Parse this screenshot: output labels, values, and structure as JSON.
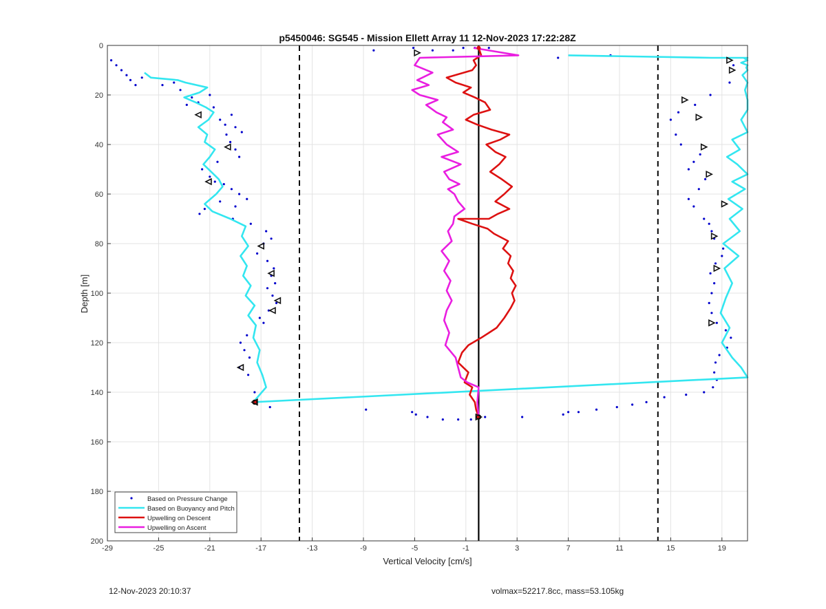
{
  "chart_data": {
    "type": "line",
    "title": "p5450046: SG545 - Mission Ellett Array 11 12-Nov-2023 17:22:28Z",
    "xlabel": "Vertical Velocity [cm/s]",
    "ylabel": "Depth [m]",
    "xlim": [
      -29,
      21
    ],
    "ylim": [
      0,
      200
    ],
    "y_reversed": true,
    "grid": true,
    "xticks": [
      "-29",
      "-25",
      "-21",
      "-17",
      "-13",
      "-9",
      "-5",
      "-1",
      "3",
      "7",
      "11",
      "15",
      "19"
    ],
    "yticks": [
      "0",
      "20",
      "40",
      "60",
      "80",
      "100",
      "120",
      "140",
      "160",
      "180",
      "200"
    ],
    "legend_location": "bottom-left",
    "reference_lines": {
      "solid_x": 0,
      "dashed_x": [
        -14,
        14
      ]
    },
    "series": [
      {
        "name": "Based on Pressure Change",
        "color": "#0000cc",
        "style": "dots",
        "x": [
          -28.7,
          -28.3,
          -27.5,
          -27.9,
          -27.2,
          -26.8,
          -26.3,
          -24.7,
          -23.8,
          -23.3,
          -22.4,
          -22.8,
          -21.9,
          -21.0,
          -20.7,
          -20.2,
          -19.8,
          -19.3,
          -19.0,
          -18.5,
          -19.7,
          -19.4,
          -19.0,
          -18.7,
          -20.4,
          -21.6,
          -21.0,
          -20.6,
          -19.9,
          -19.3,
          -18.7,
          -18.1,
          -19.0,
          -20.2,
          -21.4,
          -21.8,
          -19.2,
          -17.8,
          -16.6,
          -16.2,
          -16.8,
          -17.3,
          -16.5,
          -16.0,
          -16.2,
          -15.9,
          -16.5,
          -16.1,
          -15.8,
          -16.4,
          -17.1,
          -16.8,
          -18.1,
          -18.6,
          -18.3,
          -17.9,
          -18.7,
          -18.0,
          -17.5,
          -16.3,
          -8.8,
          -5.2,
          -4.9,
          -4.0,
          -2.8,
          -1.6,
          -0.6,
          0.1,
          0.5,
          3.4,
          6.6,
          7.0,
          7.8,
          9.2,
          10.8,
          12.0,
          13.1,
          14.5,
          16.2,
          17.6,
          18.3,
          18.6,
          18.4,
          18.5,
          18.8,
          19.4,
          19.7,
          19.3,
          18.6,
          18.2,
          18.0,
          18.2,
          18.4,
          18.1,
          18.5,
          19.0,
          19.1,
          18.4,
          18.2,
          18.0,
          17.6,
          16.8,
          16.4,
          17.2,
          17.7,
          16.4,
          16.8,
          17.3,
          15.8,
          15.4,
          15.0,
          15.6,
          16.9,
          18.1,
          19.6,
          19.9,
          -8.2,
          -5.1,
          -3.6,
          -2.0,
          -1.2,
          -0.3,
          0.8,
          6.2,
          10.3
        ],
        "y": [
          6,
          8,
          12,
          10,
          14,
          16,
          13,
          16,
          15,
          18,
          21,
          24,
          23,
          20,
          25,
          30,
          32,
          28,
          33,
          35,
          36,
          39,
          42,
          45,
          47,
          50,
          53,
          55,
          56,
          58,
          60,
          62,
          65,
          63,
          66,
          68,
          70,
          72,
          75,
          78,
          80,
          84,
          87,
          90,
          93,
          96,
          98,
          101,
          104,
          107,
          110,
          112,
          117,
          120,
          123,
          126,
          130,
          133,
          140,
          146,
          147,
          148,
          149,
          150,
          151,
          151,
          151,
          150,
          150,
          150,
          149,
          148,
          148,
          147,
          146,
          145,
          144,
          142,
          141,
          140,
          138,
          135,
          132,
          128,
          125,
          122,
          118,
          115,
          112,
          108,
          104,
          100,
          96,
          92,
          88,
          85,
          82,
          78,
          75,
          72,
          70,
          65,
          62,
          58,
          54,
          50,
          47,
          44,
          40,
          36,
          30,
          27,
          24,
          20,
          15,
          8,
          2,
          1,
          2,
          2,
          1,
          1,
          1,
          5,
          4
        ]
      },
      {
        "name": "Based on Buoyancy and Pitch",
        "color": "#33e6f0",
        "style": "line",
        "x": [
          -26.1,
          -25.6,
          -23.5,
          -22.9,
          -21.2,
          -21.8,
          -23.0,
          -22.1,
          -21.3,
          -20.7,
          -21.1,
          -21.9,
          -21.2,
          -21.4,
          -20.6,
          -21.0,
          -21.5,
          -20.9,
          -20.3,
          -20.0,
          -20.5,
          -21.4,
          -20.8,
          -19.4,
          -18.2,
          -18.5,
          -18.0,
          -18.6,
          -18.1,
          -18.4,
          -17.8,
          -18.2,
          -17.5,
          -18.0,
          -17.4,
          -17.6,
          -17.1,
          -17.3,
          -16.9,
          -16.6,
          -17.6,
          21.0,
          20.5,
          19.8,
          19.0,
          19.6,
          18.9,
          19.3,
          19.8,
          19.2,
          20.3,
          19.1,
          20.4,
          19.6,
          20.6,
          19.5,
          20.8,
          19.8,
          21.0,
          20.2,
          19.4,
          20.4,
          19.8,
          21.0,
          20.5,
          21.0,
          21.0,
          20.8,
          21.0,
          20.6,
          21.0,
          20.9,
          21.0,
          20.5,
          21.0,
          20.7,
          21.0,
          19.8,
          19.3,
          18.9,
          18.2,
          7.0
        ],
        "y": [
          11,
          13,
          14,
          15,
          17,
          19,
          21,
          23,
          25,
          27,
          30,
          33,
          36,
          39,
          42,
          45,
          48,
          51,
          54,
          57,
          60,
          64,
          67,
          70,
          73,
          77,
          81,
          85,
          89,
          93,
          97,
          101,
          105,
          109,
          113,
          118,
          123,
          128,
          133,
          138,
          144,
          134,
          130,
          126,
          120,
          114,
          108,
          102,
          96,
          90,
          85,
          80,
          75,
          70,
          66,
          62,
          58,
          55,
          52,
          48,
          45,
          42,
          38,
          35,
          30,
          26,
          22,
          18,
          15,
          12,
          10,
          9,
          8,
          7,
          6,
          5,
          5,
          5,
          5,
          5,
          5,
          4
        ]
      },
      {
        "name": "Upwelling on Descent",
        "color": "#dd1111",
        "style": "line",
        "x": [
          0.0,
          0.2,
          -0.4,
          -0.2,
          -0.5,
          -2.5,
          -1.8,
          -0.6,
          -1.2,
          -0.3,
          0.5,
          0.9,
          -0.4,
          -1.0,
          -0.1,
          1.0,
          2.4,
          1.7,
          0.6,
          1.3,
          2.1,
          1.6,
          0.9,
          1.8,
          2.6,
          2.0,
          1.3,
          2.4,
          1.5,
          0.8,
          -1.6,
          -0.5,
          0.7,
          1.2,
          2.3,
          1.9,
          2.5,
          2.3,
          2.7,
          2.5,
          2.9,
          2.6,
          2.8,
          2.5,
          2.0,
          1.4,
          0.8,
          0.2,
          -0.8,
          -1.3,
          -1.6,
          -0.8,
          -1.1,
          -0.5,
          -0.7,
          -0.3,
          -0.2,
          0.0
        ],
        "y": [
          1,
          4,
          6,
          8,
          10,
          13,
          15,
          17,
          19,
          21,
          23,
          26,
          28,
          30,
          32,
          34,
          36,
          38,
          40,
          43,
          45,
          48,
          51,
          54,
          57,
          60,
          63,
          66,
          68,
          70,
          70,
          72,
          74,
          76,
          79,
          82,
          85,
          88,
          91,
          94,
          97,
          100,
          103,
          106,
          110,
          114,
          116,
          118,
          121,
          124,
          128,
          132,
          136,
          138,
          141,
          144,
          147,
          150
        ]
      },
      {
        "name": "Upwelling on Ascent",
        "color": "#e91ee0",
        "style": "line",
        "x": [
          -0.4,
          3.1,
          -4.6,
          -5.0,
          -3.6,
          -4.8,
          -3.9,
          -5.2,
          -4.6,
          -3.2,
          -4.1,
          -3.3,
          -2.5,
          -2.8,
          -2.0,
          -3.2,
          -2.5,
          -1.6,
          -2.9,
          -1.4,
          -2.7,
          -2.3,
          -1.5,
          -2.4,
          -1.9,
          -1.6,
          -1.1,
          -1.9,
          -2.0,
          -2.4,
          -2.1,
          -2.9,
          -2.3,
          -2.7,
          -2.2,
          -2.5,
          -2.1,
          -2.5,
          -2.7,
          -2.3,
          -2.6,
          -1.8,
          -1.6,
          -1.4,
          -0.9,
          0.0,
          -0.1,
          0.0
        ],
        "y": [
          1,
          4,
          5,
          8,
          11,
          14,
          16,
          18,
          20,
          22,
          24,
          27,
          29,
          31,
          34,
          36,
          40,
          43,
          45,
          48,
          51,
          54,
          56,
          58,
          60,
          63,
          66,
          69,
          72,
          75,
          79,
          83,
          87,
          91,
          95,
          99,
          103,
          107,
          111,
          116,
          121,
          126,
          130,
          134,
          136,
          138,
          144,
          150
        ]
      }
    ],
    "triangle_markers": {
      "color": "#111111",
      "x": [
        -4.8,
        -21.9,
        -19.6,
        -21.1,
        -17.0,
        -16.2,
        -15.7,
        -16.1,
        -18.6,
        19.6,
        19.8,
        16.1,
        17.2,
        17.6,
        18.0,
        19.2,
        18.4,
        18.6,
        18.2,
        -17.5,
        0.0
      ],
      "y": [
        3,
        28,
        41,
        55,
        81,
        92,
        103,
        107,
        130,
        6,
        10,
        22,
        29,
        41,
        52,
        64,
        77,
        90,
        112,
        144,
        150
      ]
    }
  },
  "legend": {
    "items": [
      "Based on Pressure Change",
      "Based on Buoyancy and Pitch",
      "Upwelling on Descent",
      "Upwelling on Ascent"
    ]
  },
  "footer": {
    "left": "12-Nov-2023 20:10:37",
    "right": "volmax=52217.8cc, mass=53.105kg"
  }
}
